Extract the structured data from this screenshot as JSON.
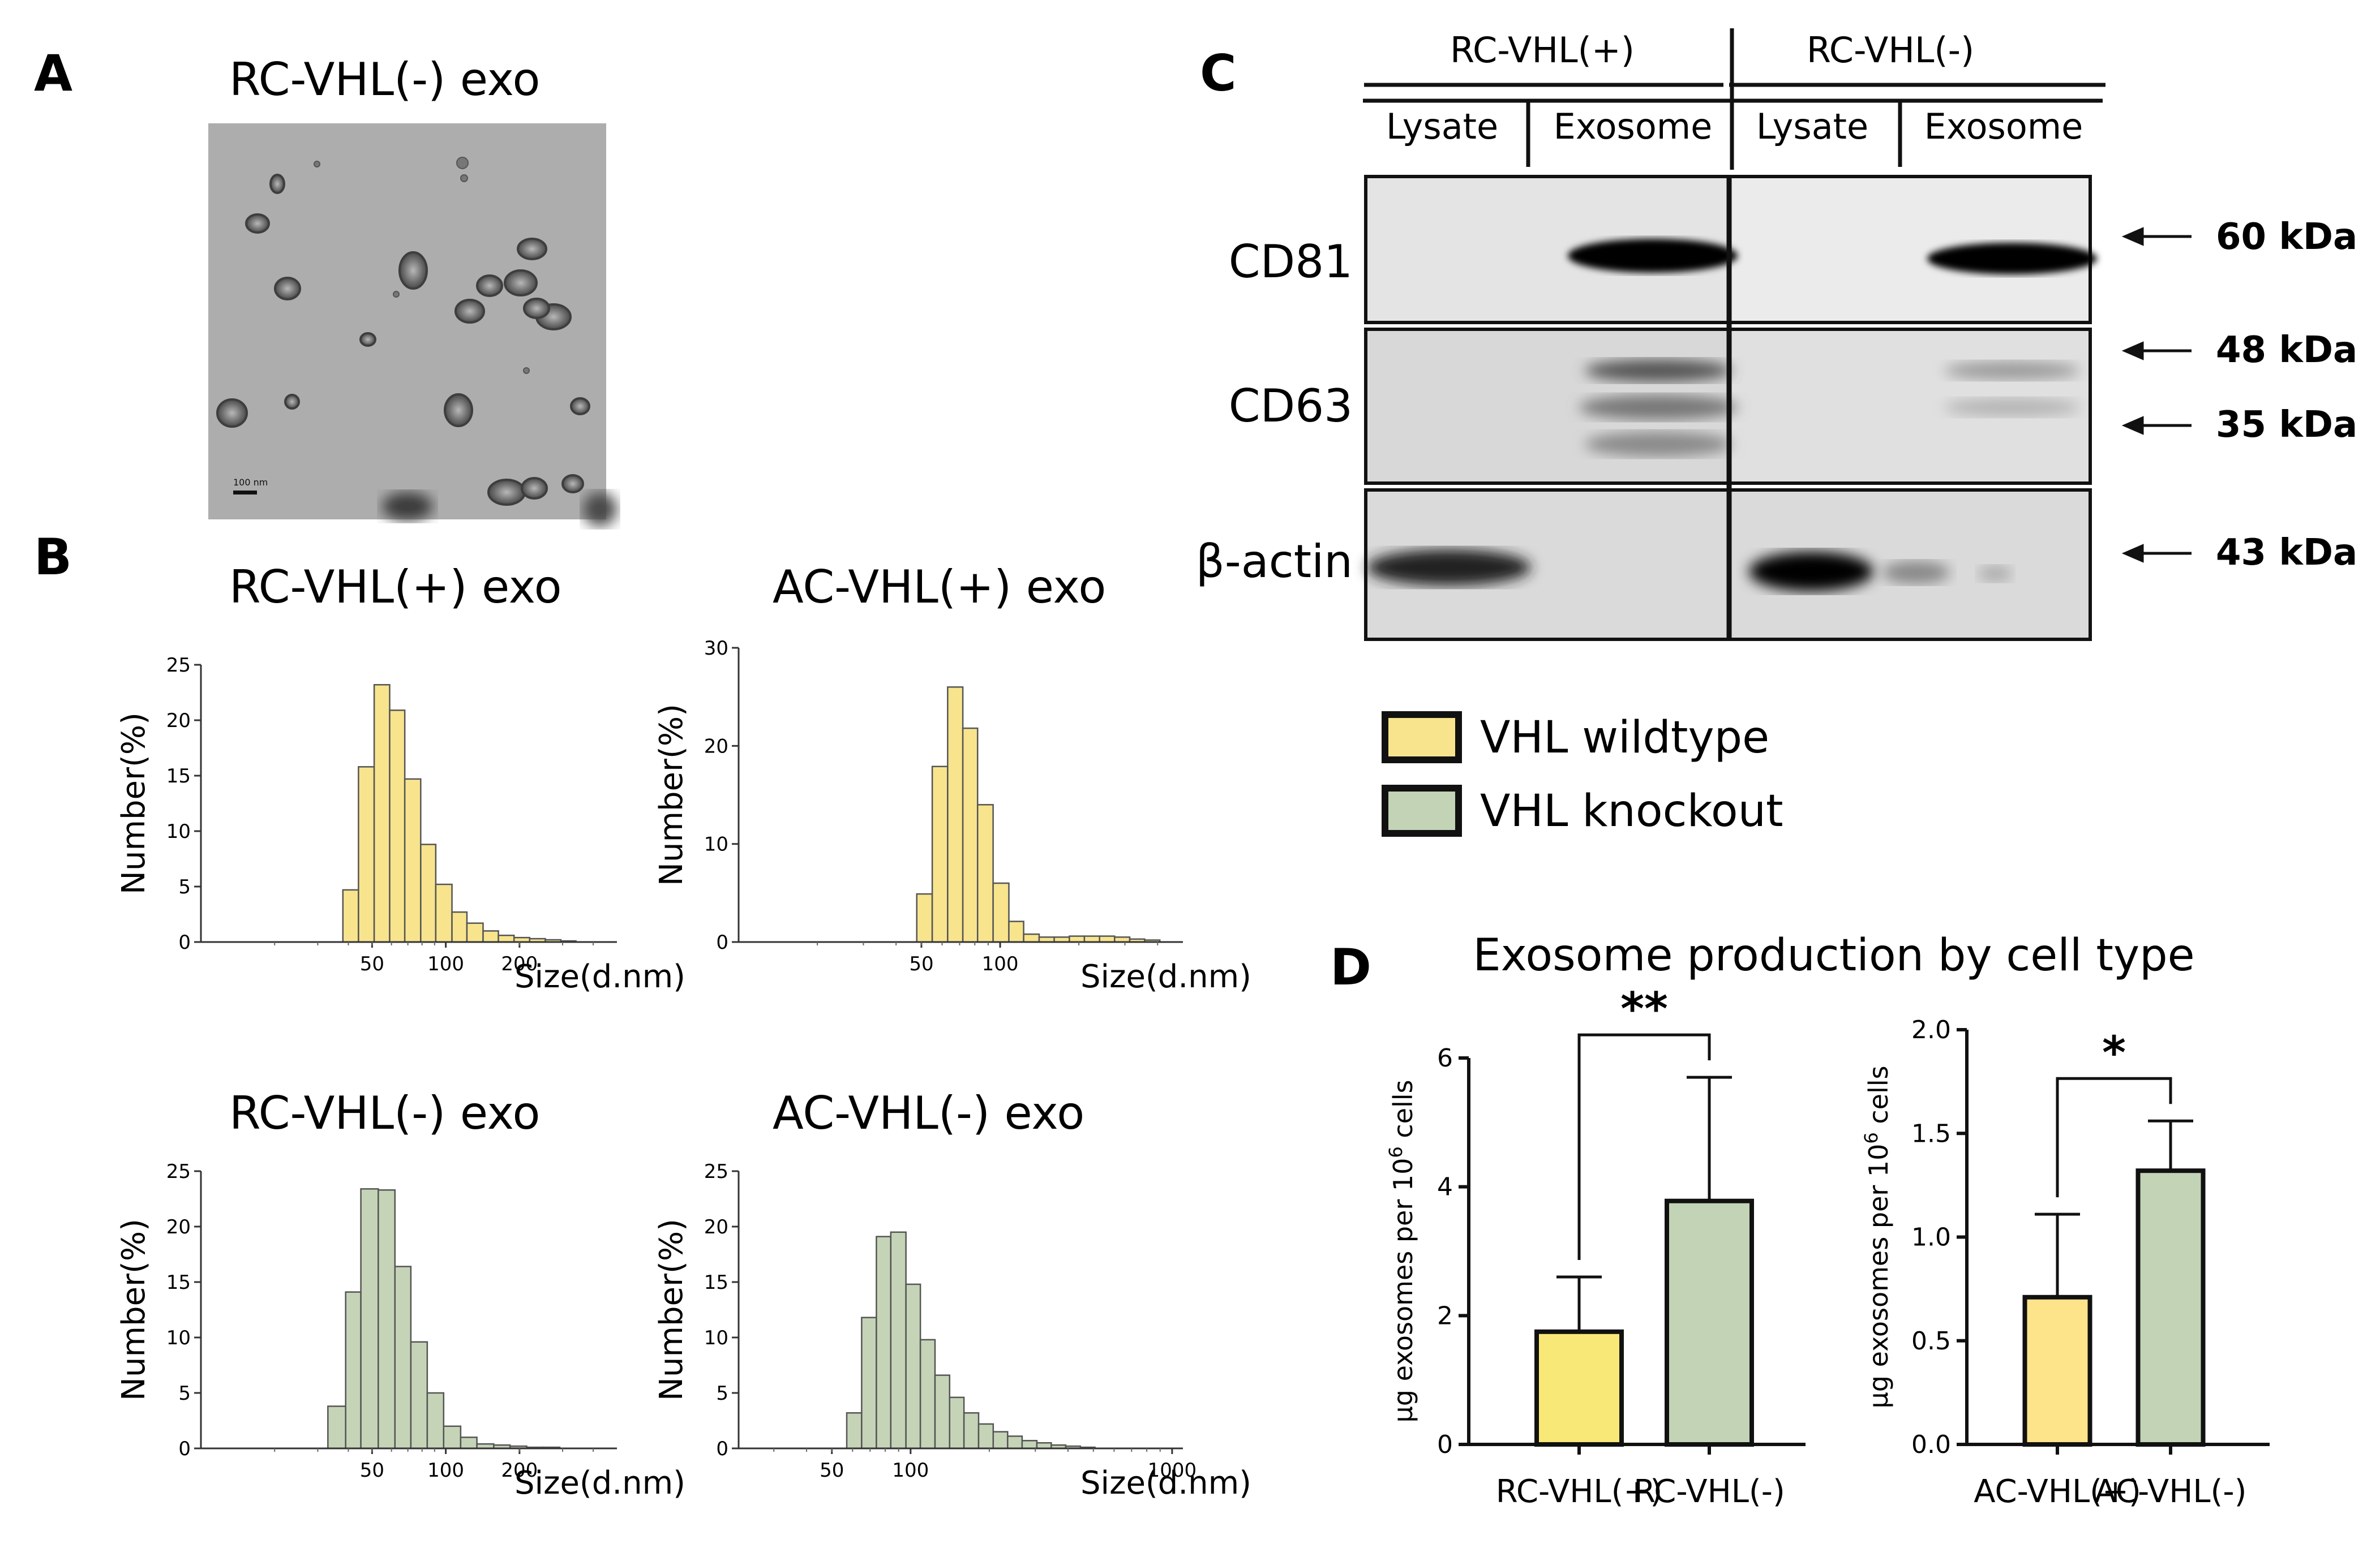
{
  "panels": {
    "A": {
      "label": "A",
      "title": "RC-VHL(-) exo",
      "scale_bar": "100 nm"
    },
    "B": {
      "label": "B"
    },
    "C": {
      "label": "C",
      "groups": [
        "RC-VHL(+)",
        "RC-VHL(-)"
      ],
      "lanes": [
        "Lysate",
        "Exosome",
        "Lysate",
        "Exosome"
      ],
      "rows": [
        "CD81",
        "CD63",
        "β-actin"
      ],
      "markers": [
        "60 kDa",
        "48 kDa",
        "35 kDa",
        "43 kDa"
      ]
    },
    "D": {
      "label": "D",
      "title": "Exosome production by cell type"
    }
  },
  "legend": [
    {
      "label": "VHL wildtype",
      "color": "#f7e48d"
    },
    {
      "label": "VHL knockout",
      "color": "#c3d3b6"
    }
  ],
  "colors": {
    "yellow_hist": "#f7e48d",
    "green_hist": "#c5d4b7",
    "yellow_bar": "#f8e877",
    "orange_bar": "#fde38a",
    "green_bar": "#c3d3b6"
  },
  "chart_data": [
    {
      "id": "hist-rc-plus",
      "type": "bar",
      "title": "RC-VHL(+) exo",
      "xlabel": "Size(d.nm)",
      "ylabel": "Number(%)",
      "xscale": "log",
      "xlim": [
        10,
        500
      ],
      "ylim": [
        0,
        25
      ],
      "yticks": [
        0,
        5,
        10,
        15,
        20,
        25
      ],
      "xticks": [
        50,
        100,
        200
      ],
      "color": "yellow",
      "bins": [
        {
          "x0": 38,
          "x1": 44,
          "value": 4.7
        },
        {
          "x0": 44,
          "x1": 51,
          "value": 15.8
        },
        {
          "x0": 51,
          "x1": 59,
          "value": 23.2
        },
        {
          "x0": 59,
          "x1": 68,
          "value": 20.9
        },
        {
          "x0": 68,
          "x1": 79,
          "value": 14.7
        },
        {
          "x0": 79,
          "x1": 91,
          "value": 8.8
        },
        {
          "x0": 91,
          "x1": 106,
          "value": 5.2
        },
        {
          "x0": 106,
          "x1": 122,
          "value": 2.7
        },
        {
          "x0": 122,
          "x1": 142,
          "value": 1.7
        },
        {
          "x0": 142,
          "x1": 164,
          "value": 1.0
        },
        {
          "x0": 164,
          "x1": 190,
          "value": 0.6
        },
        {
          "x0": 190,
          "x1": 220,
          "value": 0.4
        },
        {
          "x0": 220,
          "x1": 255,
          "value": 0.3
        },
        {
          "x0": 255,
          "x1": 295,
          "value": 0.2
        },
        {
          "x0": 295,
          "x1": 340,
          "value": 0.1
        }
      ]
    },
    {
      "id": "hist-ac-plus",
      "type": "bar",
      "title": "AC-VHL(+) exo",
      "xlabel": "Size(d.nm)",
      "ylabel": "Number(%)",
      "xscale": "log",
      "xlim": [
        10,
        500
      ],
      "ylim": [
        0,
        30
      ],
      "yticks": [
        0,
        10,
        20,
        30
      ],
      "xticks": [
        50,
        100
      ],
      "color": "yellow",
      "bins": [
        {
          "x0": 48,
          "x1": 55,
          "value": 4.9
        },
        {
          "x0": 55,
          "x1": 63,
          "value": 17.9
        },
        {
          "x0": 63,
          "x1": 72,
          "value": 26.0
        },
        {
          "x0": 72,
          "x1": 82,
          "value": 21.8
        },
        {
          "x0": 82,
          "x1": 94,
          "value": 14.0
        },
        {
          "x0": 94,
          "x1": 108,
          "value": 6.0
        },
        {
          "x0": 108,
          "x1": 123,
          "value": 2.1
        },
        {
          "x0": 123,
          "x1": 141,
          "value": 0.8
        },
        {
          "x0": 141,
          "x1": 161,
          "value": 0.5
        },
        {
          "x0": 161,
          "x1": 184,
          "value": 0.5
        },
        {
          "x0": 184,
          "x1": 210,
          "value": 0.6
        },
        {
          "x0": 210,
          "x1": 240,
          "value": 0.6
        },
        {
          "x0": 240,
          "x1": 274,
          "value": 0.6
        },
        {
          "x0": 274,
          "x1": 313,
          "value": 0.5
        },
        {
          "x0": 313,
          "x1": 357,
          "value": 0.3
        },
        {
          "x0": 357,
          "x1": 408,
          "value": 0.2
        }
      ]
    },
    {
      "id": "hist-rc-minus",
      "type": "bar",
      "title": "RC-VHL(-) exo",
      "xlabel": "Size(d.nm)",
      "ylabel": "Number(%)",
      "xscale": "log",
      "xlim": [
        10,
        500
      ],
      "ylim": [
        0,
        25
      ],
      "yticks": [
        0,
        5,
        10,
        15,
        20,
        25
      ],
      "xticks": [
        50,
        100,
        200
      ],
      "color": "green",
      "bins": [
        {
          "x0": 33,
          "x1": 39,
          "value": 3.8
        },
        {
          "x0": 39,
          "x1": 45,
          "value": 14.1
        },
        {
          "x0": 45,
          "x1": 53,
          "value": 23.4
        },
        {
          "x0": 53,
          "x1": 62,
          "value": 23.3
        },
        {
          "x0": 62,
          "x1": 72,
          "value": 16.4
        },
        {
          "x0": 72,
          "x1": 84,
          "value": 9.6
        },
        {
          "x0": 84,
          "x1": 98,
          "value": 5.0
        },
        {
          "x0": 98,
          "x1": 115,
          "value": 2.0
        },
        {
          "x0": 115,
          "x1": 134,
          "value": 1.0
        },
        {
          "x0": 134,
          "x1": 157,
          "value": 0.4
        },
        {
          "x0": 157,
          "x1": 183,
          "value": 0.3
        },
        {
          "x0": 183,
          "x1": 214,
          "value": 0.2
        },
        {
          "x0": 214,
          "x1": 250,
          "value": 0.1
        },
        {
          "x0": 250,
          "x1": 292,
          "value": 0.1
        }
      ]
    },
    {
      "id": "hist-ac-minus",
      "type": "bar",
      "title": "AC-VHL(-) exo",
      "xlabel": "Size(d.nm)",
      "ylabel": "Number(%)",
      "xscale": "log",
      "xlim": [
        22,
        1100
      ],
      "ylim": [
        0,
        25
      ],
      "yticks": [
        0,
        5,
        10,
        15,
        20,
        25
      ],
      "xticks": [
        50,
        100,
        1000
      ],
      "color": "green",
      "bins": [
        {
          "x0": 57,
          "x1": 65,
          "value": 3.2
        },
        {
          "x0": 65,
          "x1": 74,
          "value": 11.8
        },
        {
          "x0": 74,
          "x1": 84,
          "value": 19.1
        },
        {
          "x0": 84,
          "x1": 96,
          "value": 19.5
        },
        {
          "x0": 96,
          "x1": 109,
          "value": 14.8
        },
        {
          "x0": 109,
          "x1": 124,
          "value": 9.8
        },
        {
          "x0": 124,
          "x1": 141,
          "value": 6.6
        },
        {
          "x0": 141,
          "x1": 160,
          "value": 4.6
        },
        {
          "x0": 160,
          "x1": 182,
          "value": 3.2
        },
        {
          "x0": 182,
          "x1": 207,
          "value": 2.2
        },
        {
          "x0": 207,
          "x1": 235,
          "value": 1.5
        },
        {
          "x0": 235,
          "x1": 267,
          "value": 1.1
        },
        {
          "x0": 267,
          "x1": 304,
          "value": 0.7
        },
        {
          "x0": 304,
          "x1": 345,
          "value": 0.5
        },
        {
          "x0": 345,
          "x1": 392,
          "value": 0.3
        },
        {
          "x0": 392,
          "x1": 446,
          "value": 0.2
        },
        {
          "x0": 446,
          "x1": 507,
          "value": 0.1
        }
      ]
    },
    {
      "id": "bar-rc",
      "type": "bar",
      "title": "Exosome production by cell type",
      "ylabel": "μg exosomes per 10^6 cells",
      "categories": [
        "RC-VHL(+)",
        "RC-VHL(-)"
      ],
      "values": [
        1.75,
        3.78
      ],
      "errors": [
        0.85,
        1.92
      ],
      "colors": [
        "yellow_bar",
        "green_bar"
      ],
      "ylim": [
        0,
        6
      ],
      "yticks": [
        0,
        2,
        4,
        6
      ],
      "significance": "**"
    },
    {
      "id": "bar-ac",
      "type": "bar",
      "ylabel": "μg exosomes per 10^6 cells",
      "categories": [
        "AC-VHL(+)",
        "AC-VHL(-)"
      ],
      "values": [
        0.71,
        1.32
      ],
      "errors": [
        0.4,
        0.24
      ],
      "colors": [
        "orange_bar",
        "green_bar"
      ],
      "ylim": [
        0,
        2.0
      ],
      "yticks": [
        "0.0",
        "0.5",
        "1.0",
        "1.5",
        "2.0"
      ],
      "significance": "*"
    }
  ]
}
